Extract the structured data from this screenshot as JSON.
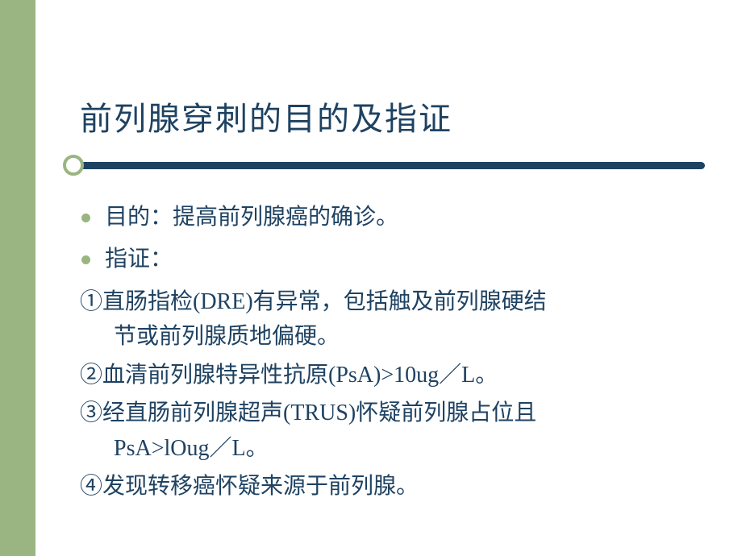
{
  "colors": {
    "sidebar": "#9ab581",
    "title": "#1e4262",
    "underline": "#1e4262",
    "circle_border": "#9ab581",
    "bullet": "#9ab581",
    "body_text": "#1e4262"
  },
  "title": "前列腺穿刺的目的及指证",
  "bullets": [
    "目的：提高前列腺癌的确诊。",
    "指证："
  ],
  "numbered": [
    {
      "full": "①直肠指检(DRE)有异常，包括触及前列腺硬结",
      "hang": "节或前列腺质地偏硬。"
    },
    {
      "full": "②血清前列腺特异性抗原(PsA)>10ug／L。",
      "hang": ""
    },
    {
      "full": "③经直肠前列腺超声(TRUS)怀疑前列腺占位且",
      "hang": "PsA>lOug／L。"
    },
    {
      "full": "④发现转移癌怀疑来源于前列腺。",
      "hang": ""
    }
  ]
}
